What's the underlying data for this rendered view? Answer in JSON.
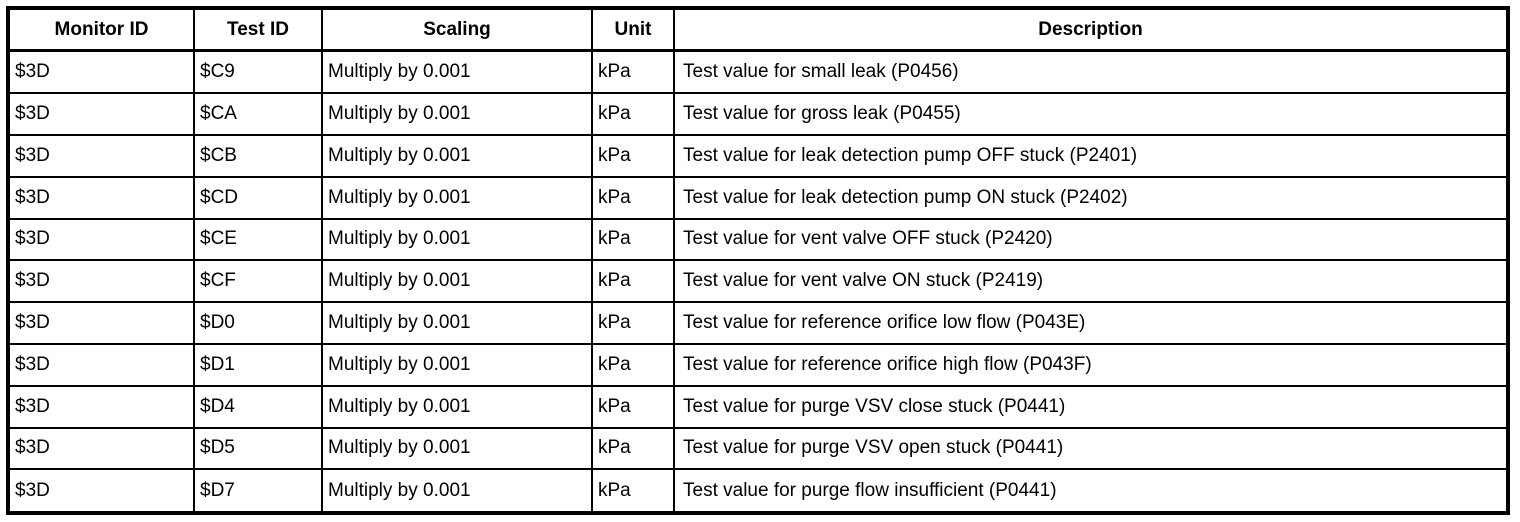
{
  "table": {
    "columns": [
      "Monitor ID",
      "Test ID",
      "Scaling",
      "Unit",
      "Description"
    ],
    "rows": [
      {
        "monitor_id": "$3D",
        "test_id": "$C9",
        "scaling": "Multiply by 0.001",
        "unit": "kPa",
        "description": "Test value for small leak (P0456)"
      },
      {
        "monitor_id": "$3D",
        "test_id": "$CA",
        "scaling": "Multiply by 0.001",
        "unit": "kPa",
        "description": "Test value for gross leak (P0455)"
      },
      {
        "monitor_id": "$3D",
        "test_id": "$CB",
        "scaling": "Multiply by 0.001",
        "unit": "kPa",
        "description": "Test value for leak detection pump OFF stuck (P2401)"
      },
      {
        "monitor_id": "$3D",
        "test_id": "$CD",
        "scaling": "Multiply by 0.001",
        "unit": "kPa",
        "description": "Test value for leak detection pump ON stuck (P2402)"
      },
      {
        "monitor_id": "$3D",
        "test_id": "$CE",
        "scaling": "Multiply by 0.001",
        "unit": "kPa",
        "description": "Test value for vent valve OFF stuck (P2420)"
      },
      {
        "monitor_id": "$3D",
        "test_id": "$CF",
        "scaling": "Multiply by 0.001",
        "unit": "kPa",
        "description": "Test value for vent valve ON stuck (P2419)"
      },
      {
        "monitor_id": "$3D",
        "test_id": "$D0",
        "scaling": "Multiply by 0.001",
        "unit": "kPa",
        "description": "Test value for reference orifice low flow (P043E)"
      },
      {
        "monitor_id": "$3D",
        "test_id": "$D1",
        "scaling": "Multiply by 0.001",
        "unit": "kPa",
        "description": "Test value for reference orifice high flow (P043F)"
      },
      {
        "monitor_id": "$3D",
        "test_id": "$D4",
        "scaling": "Multiply by 0.001",
        "unit": "kPa",
        "description": "Test value for purge VSV close stuck (P0441)"
      },
      {
        "monitor_id": "$3D",
        "test_id": "$D5",
        "scaling": "Multiply by 0.001",
        "unit": "kPa",
        "description": "Test value for purge VSV open stuck (P0441)"
      },
      {
        "monitor_id": "$3D",
        "test_id": "$D7",
        "scaling": "Multiply by 0.001",
        "unit": "kPa",
        "description": "Test value for purge flow insufficient (P0441)"
      }
    ],
    "colors": {
      "text": "#000000",
      "border": "#000000",
      "background": "#ffffff"
    }
  }
}
